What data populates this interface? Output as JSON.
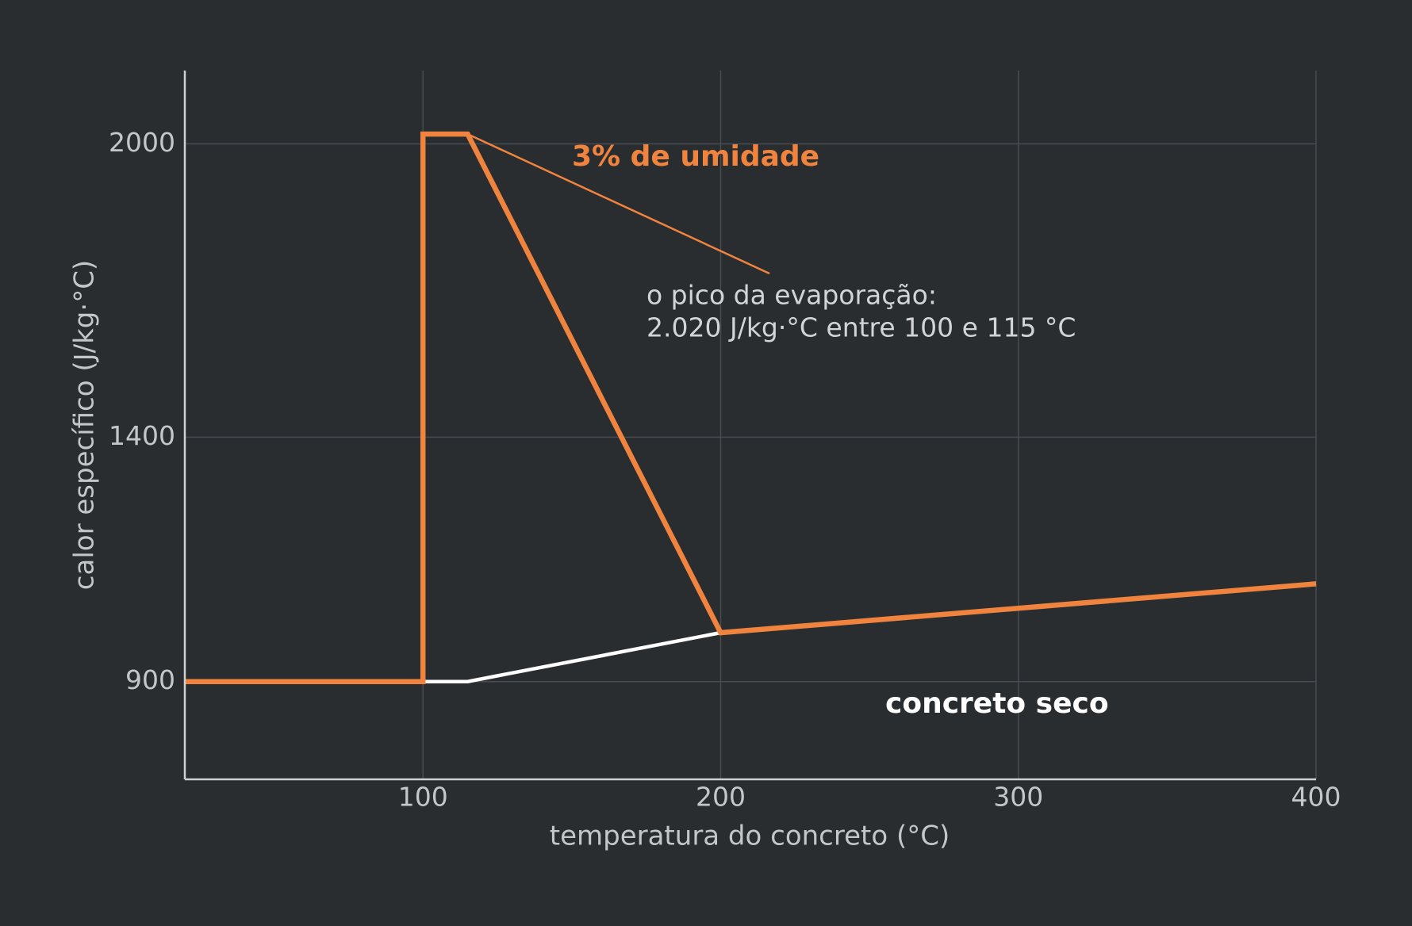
{
  "chart_data": {
    "type": "line",
    "xlabel": "temperatura do concreto (°C)",
    "ylabel": "calor específico (J/kg·°C)",
    "xlim": [
      20,
      400
    ],
    "ylim": [
      700,
      2150
    ],
    "xticks": [
      100,
      200,
      300,
      400
    ],
    "yticks": [
      900,
      1400,
      2000
    ],
    "grid": true,
    "series": [
      {
        "name": "concreto seco",
        "color": "#ffffff",
        "x": [
          20,
          100,
          115,
          200,
          400
        ],
        "values": [
          900,
          900,
          900,
          1000,
          1100
        ]
      },
      {
        "name": "3% de umidade",
        "color": "#f0843f",
        "x": [
          20,
          100,
          100,
          115,
          200,
          400
        ],
        "values": [
          900,
          900,
          2020,
          2020,
          1000,
          1100
        ]
      }
    ],
    "annotation": [
      "o pico da evaporação:",
      "2.020 J/kg·°C entre 100 e 115 °C"
    ]
  }
}
